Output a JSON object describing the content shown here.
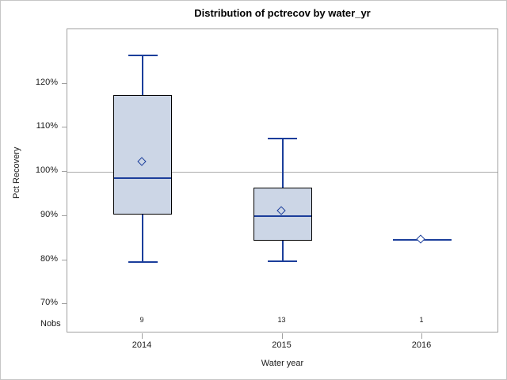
{
  "chart_data": {
    "type": "boxplot",
    "title": "Distribution of pctrecov by water_yr",
    "xlabel": "Water year",
    "ylabel": "Pct Recovery",
    "nobs_label": "Nobs",
    "categories": [
      "2014",
      "2015",
      "2016"
    ],
    "yticks": [
      70,
      80,
      90,
      100,
      110,
      120
    ],
    "ytick_suffix": "%",
    "ylim": [
      63.8,
      132.3
    ],
    "refline": 100,
    "legend": "none",
    "grid": "off",
    "groups": [
      {
        "category": "2014",
        "nobs": "9",
        "n": 9,
        "min": 79.5,
        "q1": 90.4,
        "median": 98.6,
        "q3": 117.5,
        "max": 126.4,
        "mean": 102.1
      },
      {
        "category": "2015",
        "nobs": "13",
        "n": 13,
        "min": 79.8,
        "q1": 84.4,
        "median": 90.0,
        "q3": 96.4,
        "max": 107.5,
        "mean": 91.0
      },
      {
        "category": "2016",
        "nobs": "1",
        "n": 1,
        "min": 84.6,
        "q1": 84.6,
        "median": 84.6,
        "q3": 84.6,
        "max": 84.6,
        "mean": 84.6
      }
    ],
    "colors": {
      "box_fill": "#ccd6e6",
      "box_border": "#000000",
      "line_blue": "#1b3e9b",
      "refline_gray": "#ababab",
      "axis_gray": "#a0a0a0",
      "text": "#1a1a1a"
    }
  }
}
